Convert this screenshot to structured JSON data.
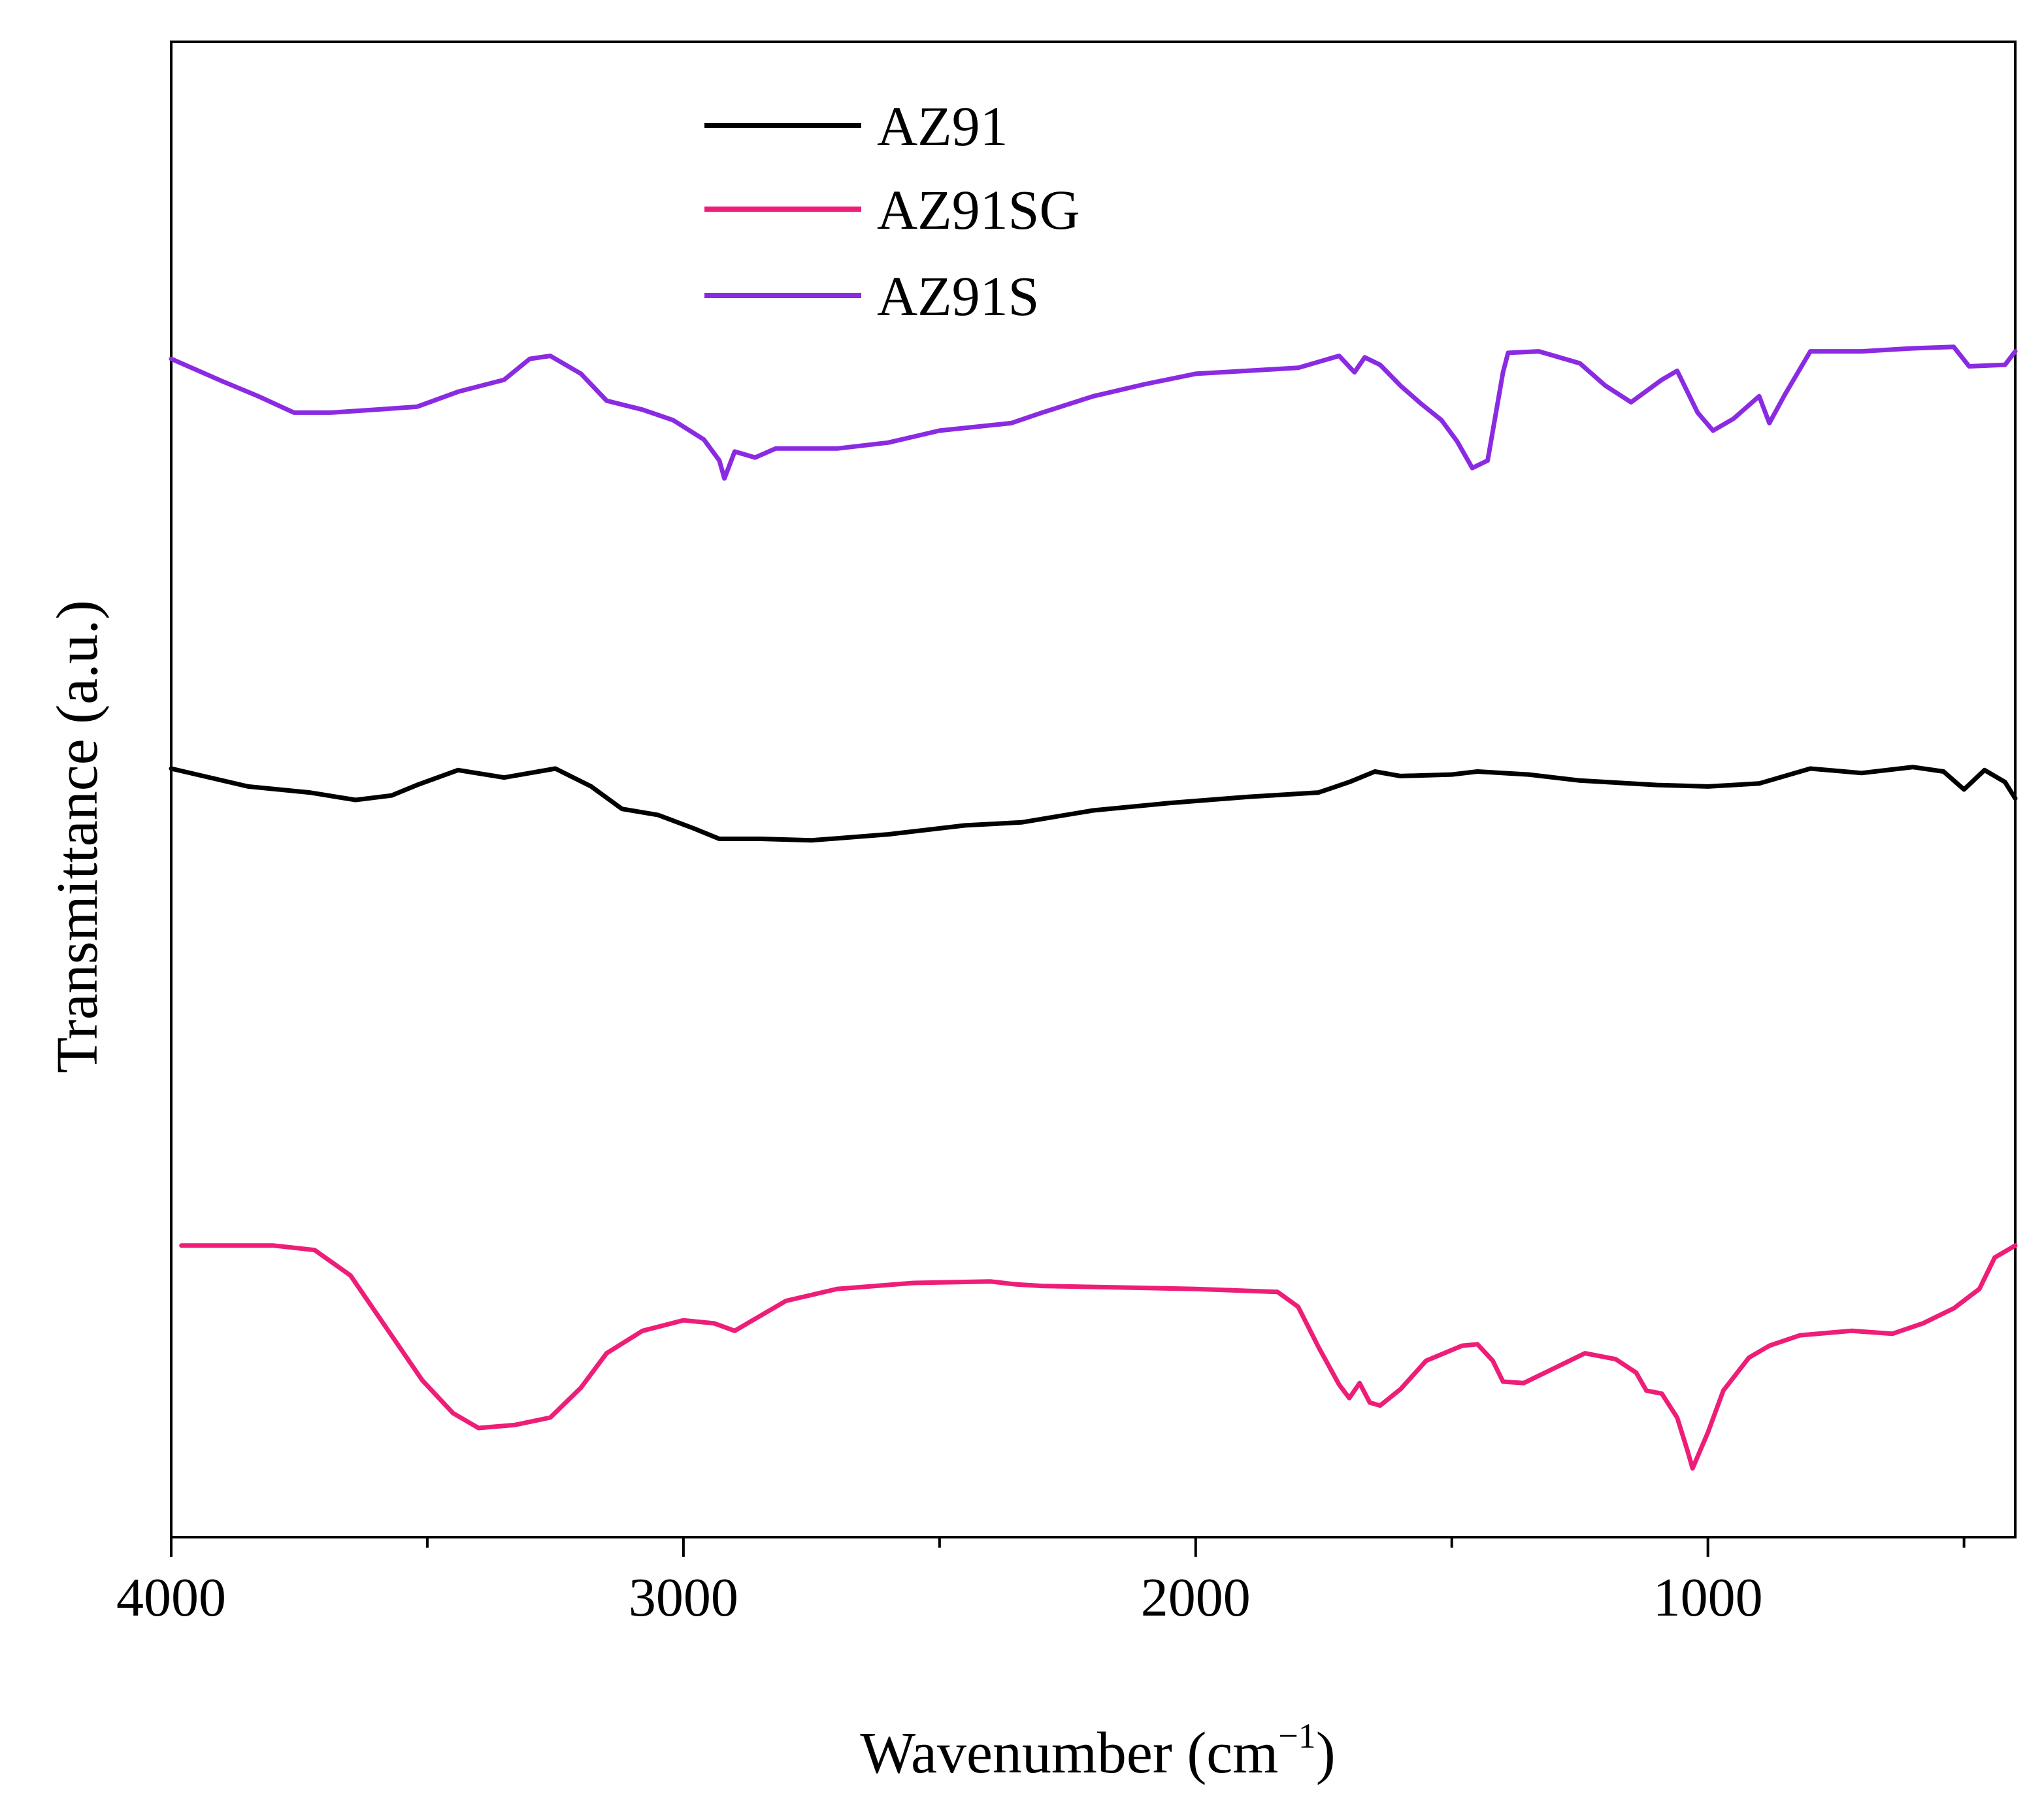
{
  "chart_data": {
    "type": "line",
    "title": "",
    "xlabel": "Wavenumber (cm",
    "xlabel_superscript": "−1",
    "xlabel_close": ")",
    "ylabel": "Transmittance (a.u.)",
    "xlim": [
      4000,
      400
    ],
    "x_reversed": true,
    "x_ticks": [
      4000,
      3000,
      2000,
      1000
    ],
    "x_tick_labels": [
      "4000",
      "3000",
      "2000",
      "1000"
    ],
    "x_minor_ticks": [
      3500,
      2500,
      1500,
      500
    ],
    "y_ticks_shown": false,
    "ylim": [
      0,
      100
    ],
    "grid": false,
    "legend_position": "top-center",
    "series": [
      {
        "name": "AZ91",
        "color": "#000000",
        "points": [
          [
            4000,
            51.4
          ],
          [
            3850,
            50.2
          ],
          [
            3730,
            49.8
          ],
          [
            3640,
            49.3
          ],
          [
            3570,
            49.6
          ],
          [
            3520,
            50.3
          ],
          [
            3440,
            51.3
          ],
          [
            3350,
            50.8
          ],
          [
            3250,
            51.4
          ],
          [
            3180,
            50.2
          ],
          [
            3120,
            48.7
          ],
          [
            3050,
            48.3
          ],
          [
            2980,
            47.4
          ],
          [
            2930,
            46.7
          ],
          [
            2850,
            46.7
          ],
          [
            2750,
            46.6
          ],
          [
            2600,
            47.0
          ],
          [
            2450,
            47.6
          ],
          [
            2340,
            47.8
          ],
          [
            2200,
            48.6
          ],
          [
            2050,
            49.1
          ],
          [
            1900,
            49.5
          ],
          [
            1760,
            49.8
          ],
          [
            1700,
            50.5
          ],
          [
            1650,
            51.2
          ],
          [
            1600,
            50.9
          ],
          [
            1500,
            51.0
          ],
          [
            1450,
            51.2
          ],
          [
            1350,
            51.0
          ],
          [
            1250,
            50.6
          ],
          [
            1100,
            50.3
          ],
          [
            1000,
            50.2
          ],
          [
            900,
            50.4
          ],
          [
            800,
            51.4
          ],
          [
            700,
            51.1
          ],
          [
            600,
            51.5
          ],
          [
            540,
            51.2
          ],
          [
            500,
            50.0
          ],
          [
            460,
            51.3
          ],
          [
            420,
            50.5
          ],
          [
            400,
            49.4
          ]
        ]
      },
      {
        "name": "AZ91SG",
        "color": "#ee1e78",
        "points": [
          [
            3980,
            19.5
          ],
          [
            3900,
            19.5
          ],
          [
            3800,
            19.5
          ],
          [
            3720,
            19.2
          ],
          [
            3650,
            17.5
          ],
          [
            3580,
            14.0
          ],
          [
            3510,
            10.5
          ],
          [
            3450,
            8.3
          ],
          [
            3400,
            7.3
          ],
          [
            3330,
            7.5
          ],
          [
            3260,
            8.0
          ],
          [
            3200,
            10.0
          ],
          [
            3150,
            12.3
          ],
          [
            3080,
            13.8
          ],
          [
            3000,
            14.5
          ],
          [
            2940,
            14.3
          ],
          [
            2900,
            13.8
          ],
          [
            2860,
            14.6
          ],
          [
            2800,
            15.8
          ],
          [
            2700,
            16.6
          ],
          [
            2550,
            17.0
          ],
          [
            2400,
            17.1
          ],
          [
            2350,
            16.9
          ],
          [
            2300,
            16.8
          ],
          [
            2150,
            16.7
          ],
          [
            2000,
            16.6
          ],
          [
            1840,
            16.4
          ],
          [
            1800,
            15.4
          ],
          [
            1760,
            12.7
          ],
          [
            1720,
            10.2
          ],
          [
            1700,
            9.3
          ],
          [
            1680,
            10.3
          ],
          [
            1660,
            9.0
          ],
          [
            1640,
            8.8
          ],
          [
            1600,
            9.9
          ],
          [
            1550,
            11.8
          ],
          [
            1480,
            12.8
          ],
          [
            1450,
            12.9
          ],
          [
            1420,
            11.8
          ],
          [
            1400,
            10.4
          ],
          [
            1360,
            10.3
          ],
          [
            1300,
            11.3
          ],
          [
            1240,
            12.3
          ],
          [
            1180,
            11.9
          ],
          [
            1140,
            11.0
          ],
          [
            1120,
            9.8
          ],
          [
            1090,
            9.6
          ],
          [
            1060,
            8.0
          ],
          [
            1040,
            5.8
          ],
          [
            1030,
            4.6
          ],
          [
            1000,
            7.0
          ],
          [
            970,
            9.8
          ],
          [
            920,
            12.0
          ],
          [
            880,
            12.8
          ],
          [
            820,
            13.5
          ],
          [
            720,
            13.8
          ],
          [
            640,
            13.6
          ],
          [
            580,
            14.3
          ],
          [
            520,
            15.3
          ],
          [
            470,
            16.6
          ],
          [
            440,
            18.7
          ],
          [
            400,
            19.5
          ]
        ]
      },
      {
        "name": "AZ91S",
        "color": "#8a2be2",
        "points": [
          [
            4000,
            78.8
          ],
          [
            3900,
            77.3
          ],
          [
            3830,
            76.3
          ],
          [
            3760,
            75.2
          ],
          [
            3690,
            75.2
          ],
          [
            3600,
            75.4
          ],
          [
            3520,
            75.6
          ],
          [
            3440,
            76.6
          ],
          [
            3350,
            77.4
          ],
          [
            3300,
            78.8
          ],
          [
            3260,
            79.0
          ],
          [
            3200,
            77.8
          ],
          [
            3150,
            76.0
          ],
          [
            3080,
            75.4
          ],
          [
            3020,
            74.7
          ],
          [
            2960,
            73.4
          ],
          [
            2930,
            72.0
          ],
          [
            2920,
            70.8
          ],
          [
            2900,
            72.6
          ],
          [
            2860,
            72.2
          ],
          [
            2820,
            72.8
          ],
          [
            2700,
            72.8
          ],
          [
            2600,
            73.2
          ],
          [
            2500,
            74.0
          ],
          [
            2360,
            74.5
          ],
          [
            2300,
            75.2
          ],
          [
            2200,
            76.3
          ],
          [
            2100,
            77.1
          ],
          [
            2000,
            77.8
          ],
          [
            1900,
            78.0
          ],
          [
            1800,
            78.2
          ],
          [
            1720,
            79.0
          ],
          [
            1690,
            77.9
          ],
          [
            1670,
            78.9
          ],
          [
            1640,
            78.4
          ],
          [
            1600,
            77.0
          ],
          [
            1560,
            75.8
          ],
          [
            1520,
            74.7
          ],
          [
            1490,
            73.3
          ],
          [
            1460,
            71.5
          ],
          [
            1430,
            72.0
          ],
          [
            1400,
            77.9
          ],
          [
            1390,
            79.2
          ],
          [
            1330,
            79.3
          ],
          [
            1250,
            78.5
          ],
          [
            1200,
            77.0
          ],
          [
            1150,
            75.9
          ],
          [
            1090,
            77.4
          ],
          [
            1060,
            78.0
          ],
          [
            1020,
            75.2
          ],
          [
            990,
            74.0
          ],
          [
            950,
            74.8
          ],
          [
            900,
            76.3
          ],
          [
            880,
            74.5
          ],
          [
            850,
            76.4
          ],
          [
            800,
            79.3
          ],
          [
            700,
            79.3
          ],
          [
            600,
            79.5
          ],
          [
            520,
            79.6
          ],
          [
            490,
            78.3
          ],
          [
            420,
            78.4
          ],
          [
            400,
            79.3
          ]
        ]
      }
    ]
  }
}
